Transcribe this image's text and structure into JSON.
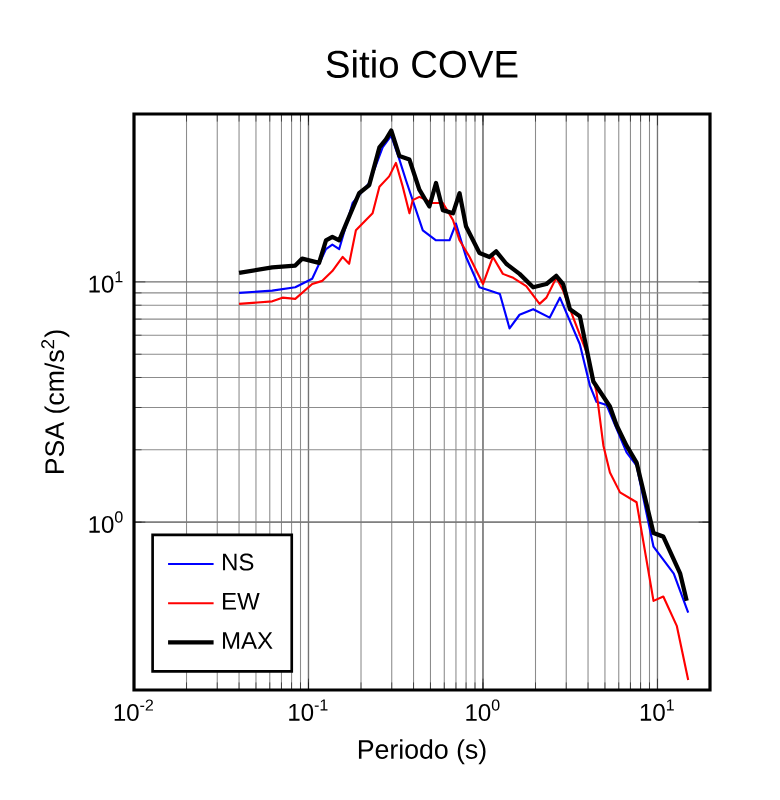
{
  "chart_data": {
    "type": "line",
    "title": "Sitio COVE",
    "xlabel": "Periodo (s)",
    "ylabel": "PSA (cm/s$^{2}$)",
    "log": "xy",
    "grid": true,
    "legend": "bottom left",
    "marker": "none",
    "line_style": "solid",
    "xlim": [
      0.01,
      20
    ],
    "ylim": [
      0.2,
      50
    ],
    "xticks": [
      {
        "value": 0.01,
        "label": "10$^{-2}$"
      },
      {
        "value": 0.1,
        "label": "10$^{-1}$"
      },
      {
        "value": 1,
        "label": "10$^{0}$"
      },
      {
        "value": 10,
        "label": "10$^{1}$"
      }
    ],
    "yticks": [
      {
        "value": 1,
        "label": "10$^{0}$"
      },
      {
        "value": 10,
        "label": "10$^{1}$"
      }
    ],
    "series": [
      {
        "name": "NS",
        "color": "#0000ff",
        "x": [
          0.04,
          0.062,
          0.084,
          0.105,
          0.126,
          0.137,
          0.15,
          0.179,
          0.223,
          0.266,
          0.298,
          0.332,
          0.362,
          0.452,
          0.538,
          0.643,
          0.7,
          0.8,
          0.955,
          1.09,
          1.25,
          1.42,
          1.62,
          1.94,
          2.41,
          2.76,
          3.59,
          4.1,
          4.47,
          5.11,
          6.65,
          7.59,
          9.49,
          12.4,
          15.0
        ],
        "values": [
          9.0,
          9.2,
          9.5,
          10.3,
          13.7,
          14.3,
          13.7,
          21.3,
          25.8,
          36.3,
          40.6,
          32.3,
          26.5,
          16.4,
          14.9,
          14.9,
          17.5,
          12.7,
          9.5,
          9.2,
          8.9,
          6.4,
          7.3,
          7.7,
          7.1,
          8.6,
          5.5,
          3.7,
          3.17,
          3.07,
          1.95,
          1.72,
          0.79,
          0.61,
          0.42
        ]
      },
      {
        "name": "EW",
        "color": "#ff0000",
        "x": [
          0.04,
          0.062,
          0.071,
          0.084,
          0.105,
          0.12,
          0.137,
          0.157,
          0.171,
          0.187,
          0.233,
          0.255,
          0.29,
          0.317,
          0.347,
          0.379,
          0.396,
          0.432,
          0.516,
          0.589,
          0.673,
          0.734,
          0.838,
          1.0,
          1.14,
          1.3,
          1.49,
          1.77,
          2.11,
          2.31,
          2.63,
          2.88,
          3.29,
          3.92,
          4.47,
          4.9,
          5.34,
          6.1,
          7.59,
          9.49,
          10.8,
          12.9,
          15.0
        ],
        "values": [
          8.1,
          8.3,
          8.6,
          8.5,
          9.8,
          10.1,
          11.1,
          12.7,
          11.9,
          16.4,
          19.3,
          24.9,
          27.5,
          31.3,
          24.9,
          19.3,
          21.9,
          22.6,
          21.3,
          21.3,
          18.1,
          14.9,
          12.7,
          9.8,
          12.7,
          10.8,
          10.4,
          9.6,
          8.1,
          8.6,
          10.4,
          9.2,
          7.1,
          5.1,
          3.49,
          2.08,
          1.61,
          1.33,
          1.21,
          0.47,
          0.49,
          0.37,
          0.22
        ]
      },
      {
        "name": "MAX",
        "color": "#000000",
        "x": [
          0.04,
          0.062,
          0.084,
          0.092,
          0.115,
          0.126,
          0.137,
          0.15,
          0.171,
          0.195,
          0.223,
          0.255,
          0.278,
          0.298,
          0.332,
          0.379,
          0.432,
          0.493,
          0.538,
          0.589,
          0.673,
          0.734,
          0.8,
          0.955,
          1.09,
          1.19,
          1.36,
          1.62,
          1.94,
          2.31,
          2.63,
          2.88,
          3.15,
          3.59,
          4.29,
          5.34,
          5.83,
          6.65,
          7.59,
          9.49,
          10.8,
          13.5,
          14.7
        ],
        "values": [
          10.9,
          11.5,
          11.7,
          12.5,
          12.0,
          14.9,
          15.4,
          14.9,
          18.7,
          23.4,
          25.3,
          36.3,
          39.2,
          42.7,
          33.4,
          32.3,
          24.2,
          20.6,
          25.8,
          19.9,
          19.3,
          23.4,
          17.0,
          13.2,
          12.7,
          13.4,
          11.9,
          10.8,
          9.5,
          9.8,
          10.6,
          9.8,
          7.7,
          7.2,
          3.85,
          3.03,
          2.53,
          2.08,
          1.77,
          0.9,
          0.87,
          0.61,
          0.47
        ]
      }
    ]
  }
}
